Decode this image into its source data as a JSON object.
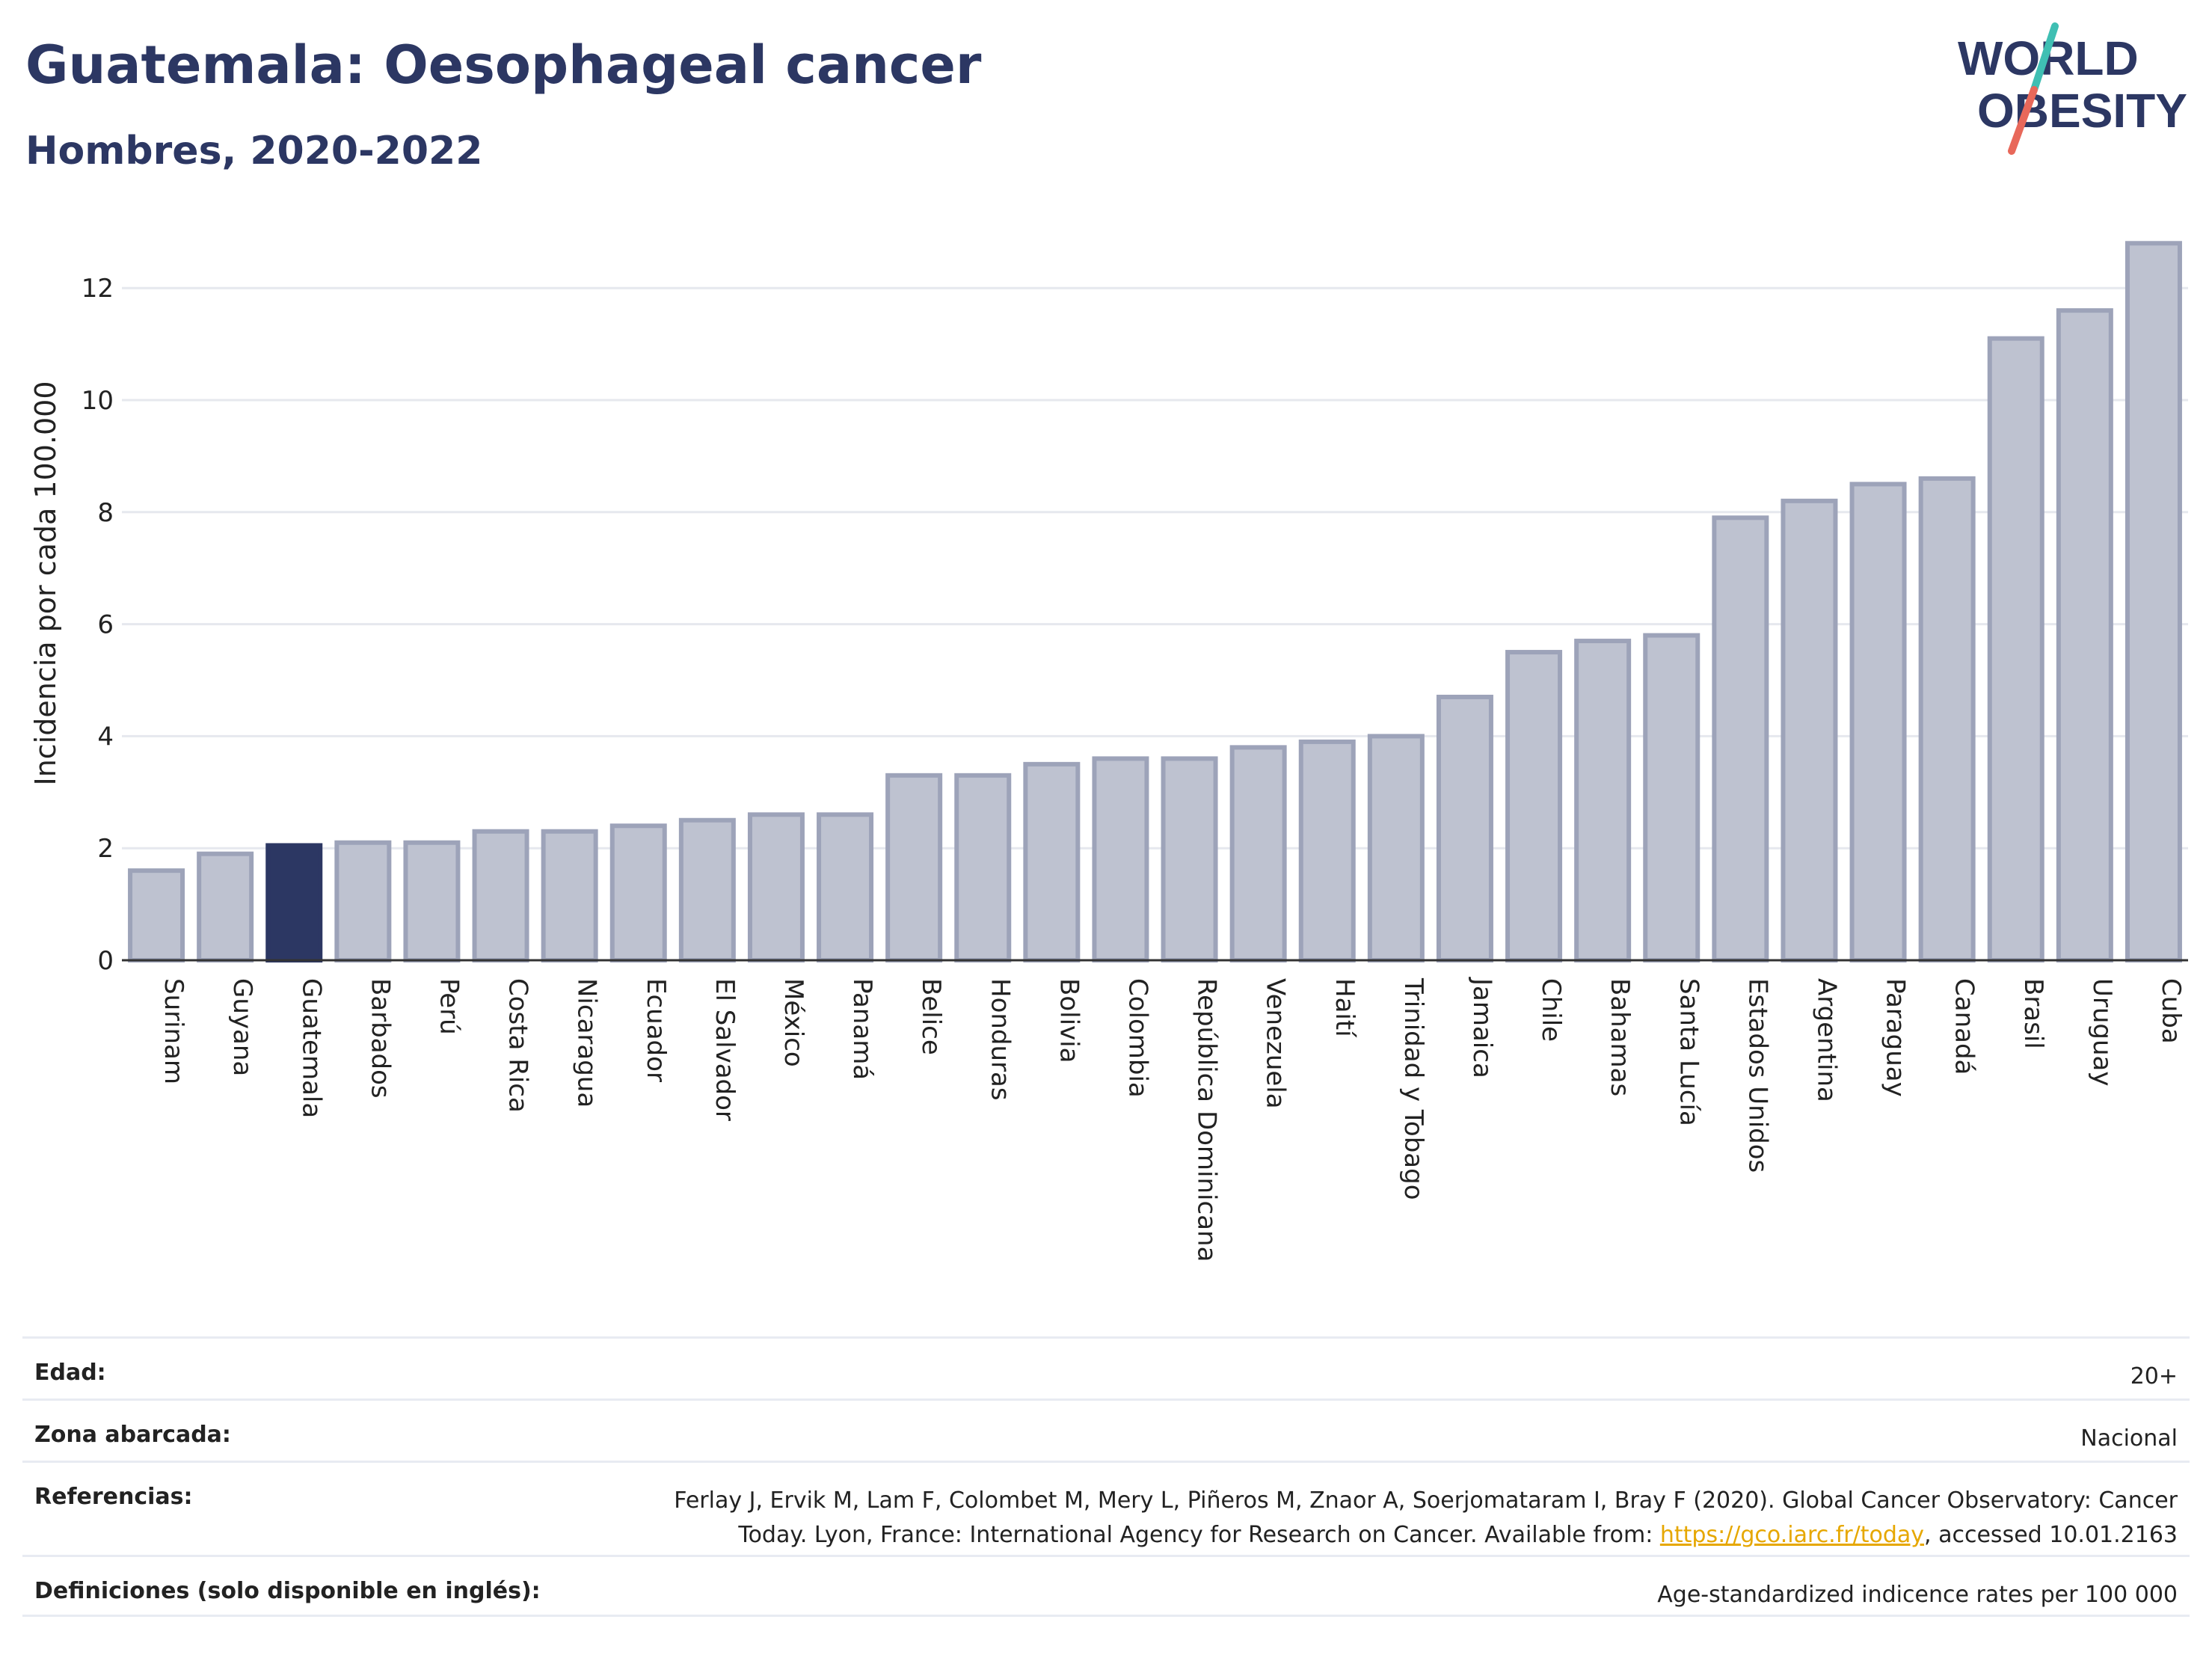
{
  "header": {
    "title": "Guatemala: Oesophageal cancer",
    "subtitle": "Hombres, 2020-2022"
  },
  "logo": {
    "line1": "WORLD",
    "line2": "OBESITY",
    "text_color": "#2c3763",
    "slash_colors": [
      "#3fbfb3",
      "#e8685a"
    ]
  },
  "colors": {
    "highlight_bar": "#2c3763",
    "other_bar_fill": "#bec2d0",
    "other_bar_stroke": "#9da3b9",
    "gridline": "#e6e8ee"
  },
  "chart_data": {
    "type": "bar",
    "ylabel": "Incidencia por cada 100.000",
    "xlabel": "",
    "ylim": [
      0,
      13
    ],
    "yticks": [
      0,
      2,
      4,
      6,
      8,
      10,
      12
    ],
    "grid": true,
    "highlight": "Guatemala",
    "categories": [
      "Surinam",
      "Guyana",
      "Guatemala",
      "Barbados",
      "Perú",
      "Costa Rica",
      "Nicaragua",
      "Ecuador",
      "El Salvador",
      "México",
      "Panamá",
      "Belice",
      "Honduras",
      "Bolivia",
      "Colombia",
      "República Dominicana",
      "Venezuela",
      "Haití",
      "Trinidad y Tobago",
      "Jamaica",
      "Chile",
      "Bahamas",
      "Santa Lucía",
      "Estados Unidos",
      "Argentina",
      "Paraguay",
      "Canadá",
      "Brasil",
      "Uruguay",
      "Cuba"
    ],
    "values": [
      1.6,
      1.9,
      2.05,
      2.1,
      2.1,
      2.3,
      2.3,
      2.4,
      2.5,
      2.6,
      2.6,
      3.3,
      3.3,
      3.5,
      3.6,
      3.6,
      3.8,
      3.9,
      4.0,
      4.7,
      5.5,
      5.7,
      5.8,
      7.9,
      8.2,
      8.5,
      8.6,
      11.1,
      11.6,
      12.8
    ]
  },
  "meta": {
    "age_label": "Edad:",
    "age_value": "20+",
    "area_label": "Zona abarcada:",
    "area_value": "Nacional",
    "refs_label": "Referencias:",
    "refs_text_1": "Ferlay J, Ervik M, Lam F, Colombet M, Mery L, Piñeros M, Znaor A, Soerjomataram I, Bray F (2020). Global Cancer Observatory: Cancer",
    "refs_text_2": "Today. Lyon, France: International Agency for Research on Cancer. Available from: ",
    "refs_link": "https://gco.iarc.fr/today",
    "refs_text_3": ", accessed 10.01.2163",
    "defs_label": "Definiciones (solo disponible en inglés):",
    "defs_value": "Age-standardized indicence rates per 100 000"
  }
}
